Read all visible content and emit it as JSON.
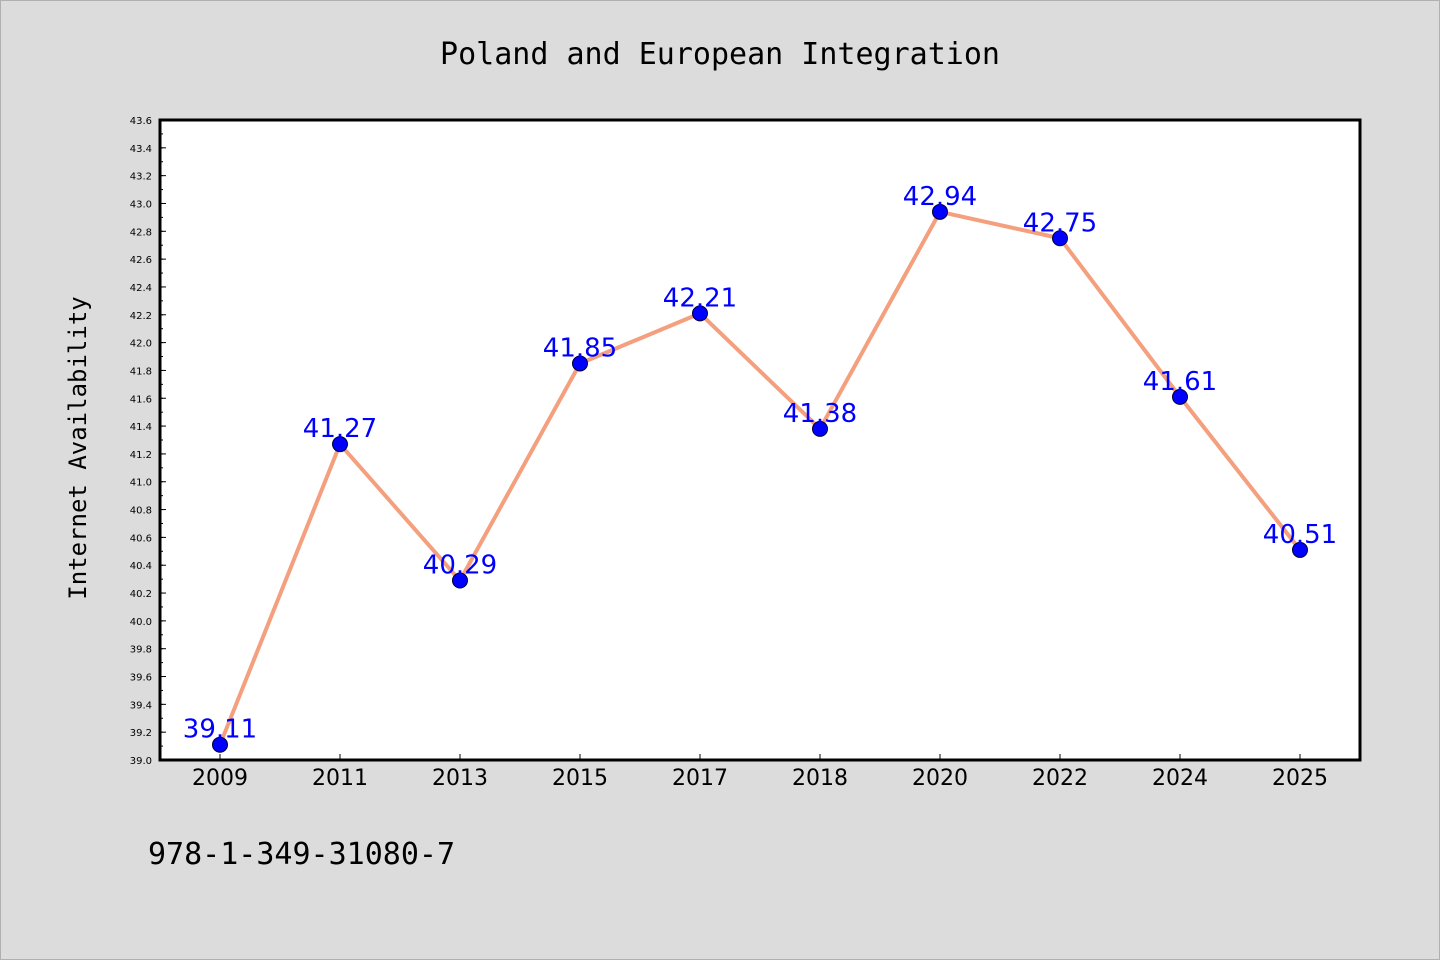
{
  "chart_data": {
    "type": "line",
    "title": "Poland and European Integration",
    "xlabel": "",
    "ylabel": "Internet Availability",
    "categories": [
      "2009",
      "2011",
      "2013",
      "2015",
      "2017",
      "2018",
      "2020",
      "2022",
      "2024",
      "2025"
    ],
    "values": [
      39.11,
      41.27,
      40.29,
      41.85,
      42.21,
      41.38,
      42.94,
      42.75,
      41.61,
      40.51
    ],
    "data_labels": [
      "39.11",
      "41.27",
      "40.29",
      "41.85",
      "42.21",
      "41.38",
      "42.94",
      "42.75",
      "41.61",
      "40.51"
    ],
    "ylim": [
      39.0,
      43.6
    ],
    "yticks": [
      "39.0",
      "39.2",
      "39.4",
      "39.6",
      "39.8",
      "40.0",
      "40.2",
      "40.4",
      "40.6",
      "40.8",
      "41.0",
      "41.2",
      "41.4",
      "41.6",
      "41.8",
      "42.0",
      "42.2",
      "42.4",
      "42.6",
      "42.8",
      "43.0",
      "43.2",
      "43.4",
      "43.6"
    ],
    "grid": false,
    "legend": "none",
    "colors": {
      "line": "#f4a07e",
      "marker": "#0000ff",
      "data_label": "#0000ff",
      "background": "#dcdcdc",
      "plot_background": "#ffffff"
    }
  },
  "footer": {
    "isbn": "978-1-349-31080-7"
  }
}
